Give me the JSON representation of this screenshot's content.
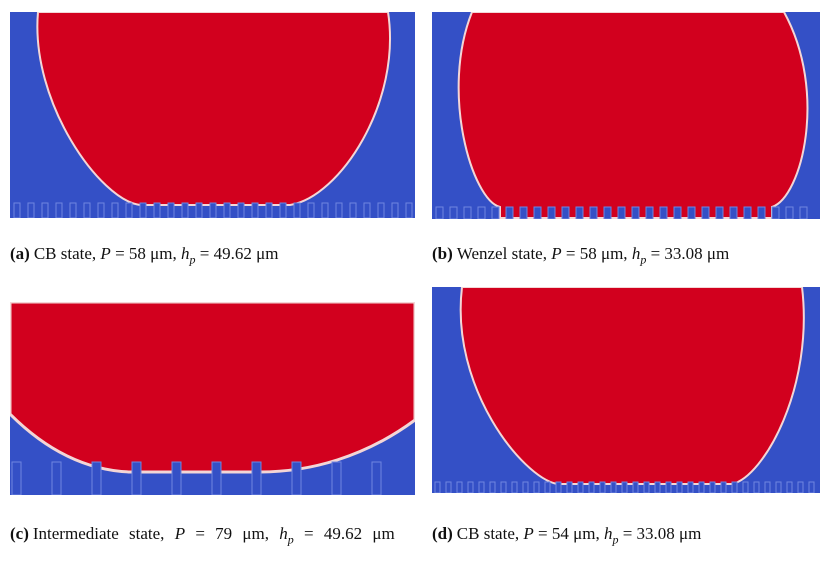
{
  "panels": [
    {
      "label": "(a)",
      "text": "CB state, ",
      "p_sym": "P",
      "p_val": " = 58 μm, ",
      "h_sym": "h",
      "h_sub": "p",
      "h_val": " = 49.62 μm"
    },
    {
      "label": "(b)",
      "text": "Wenzel state, ",
      "p_sym": "P",
      "p_val": " = 58 μm, ",
      "h_sym": "h",
      "h_sub": "p",
      "h_val": " = 33.08 μm"
    },
    {
      "label": "(c)",
      "text": "Intermediate state, ",
      "p_sym": "P",
      "p_val": " = 79 μm, ",
      "h_sym": "h",
      "h_sub": "p",
      "h_val": " = 49.62 μm"
    },
    {
      "label": "(d)",
      "text": "CB state, ",
      "p_sym": "P",
      "p_val": " = 54 μm, ",
      "h_sym": "h",
      "h_sub": "p",
      "h_val": " = 33.08 μm"
    }
  ]
}
